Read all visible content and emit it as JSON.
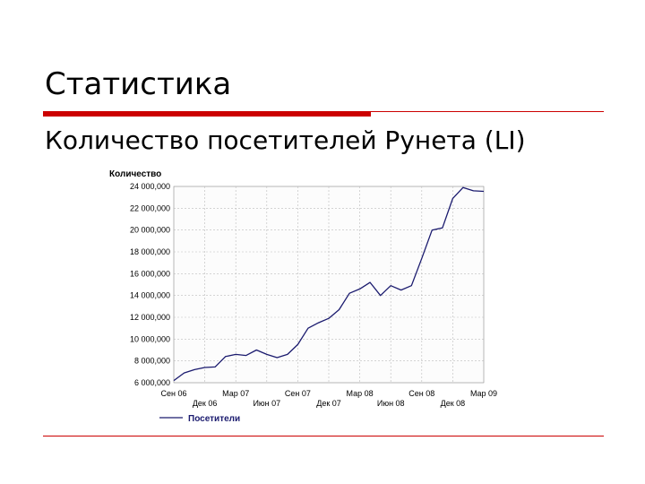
{
  "slide": {
    "title": "Статистика",
    "subtitle": "Количество посетителей Рунета (LI)"
  },
  "colors": {
    "accent": "#cc0000",
    "series": "#1a1a6e",
    "grid": "#bbbbbb"
  },
  "chart_data": {
    "type": "line",
    "title": "",
    "ylabel": "Количество",
    "xlabel": "",
    "ylim": [
      6000000,
      24000000
    ],
    "yticks": [
      6000000,
      8000000,
      10000000,
      12000000,
      14000000,
      16000000,
      18000000,
      20000000,
      22000000,
      24000000
    ],
    "ytick_labels": [
      "6 000,000",
      "8 000,000",
      "10 000,000",
      "12 000,000",
      "14 000,000",
      "16 000,000",
      "18 000,000",
      "20 000,000",
      "22 000,000",
      "24 000,000"
    ],
    "xtick_labels_upper": [
      "Сен 06",
      "Мар 07",
      "Сен 07",
      "Мар 08",
      "Сен 08",
      "Мар 09"
    ],
    "xtick_labels_lower": [
      "Дек 06",
      "Июн 07",
      "Дек 07",
      "Июн 08",
      "Дек 08"
    ],
    "x_range": [
      "Сен 06",
      "Мар 09"
    ],
    "grid": true,
    "legend_position": "bottom-left",
    "series": [
      {
        "name": "Посетители",
        "x": [
          "Сен 06",
          "Окт 06",
          "Ноя 06",
          "Дек 06",
          "Янв 07",
          "Фев 07",
          "Мар 07",
          "Апр 07",
          "Май 07",
          "Июн 07",
          "Июл 07",
          "Авг 07",
          "Сен 07",
          "Окт 07",
          "Ноя 07",
          "Дек 07",
          "Янв 08",
          "Фев 08",
          "Мар 08",
          "Апр 08",
          "Май 08",
          "Июн 08",
          "Июл 08",
          "Авг 08",
          "Сен 08",
          "Окт 08",
          "Ноя 08",
          "Дек 08",
          "Янв 09",
          "Фев 09",
          "Мар 09"
        ],
        "values": [
          6200000,
          6900000,
          7200000,
          7400000,
          7450000,
          8400000,
          8600000,
          8500000,
          9000000,
          8600000,
          8300000,
          8600000,
          9500000,
          11000000,
          11500000,
          11900000,
          12700000,
          14200000,
          14600000,
          15200000,
          14000000,
          14900000,
          14500000,
          14900000,
          17400000,
          20000000,
          20200000,
          22900000,
          23900000,
          23600000,
          23550000
        ]
      }
    ]
  }
}
